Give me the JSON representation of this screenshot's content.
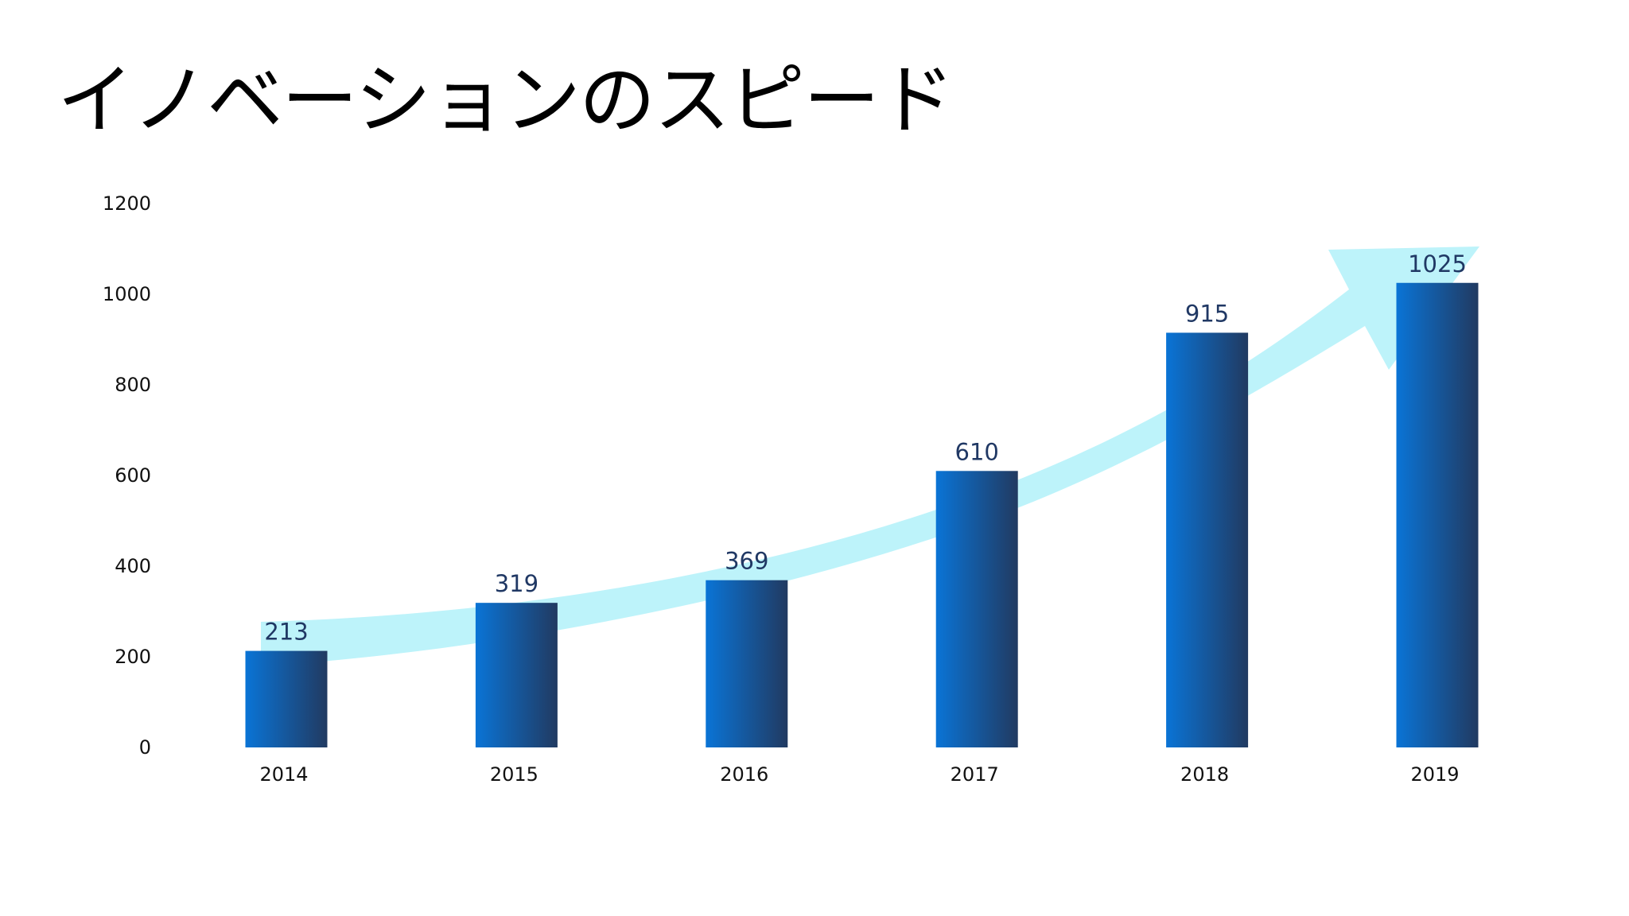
{
  "slide": {
    "title": "イノベーションのスピード"
  },
  "colors": {
    "bar_light": "#0a74d6",
    "bar_dark": "#213a61",
    "arrow": "#bdf3fa",
    "data_label": "#203864"
  },
  "chart_data": {
    "type": "bar",
    "categories": [
      "2014",
      "2015",
      "2016",
      "2017",
      "2018",
      "2019"
    ],
    "values": [
      213,
      319,
      369,
      610,
      915,
      1025
    ],
    "data_labels": [
      "213",
      "319",
      "369",
      "610",
      "915",
      "1025"
    ],
    "y_ticks": [
      "0",
      "200",
      "400",
      "600",
      "800",
      "1000",
      "1200"
    ],
    "ylim": [
      0,
      1200
    ],
    "title": "",
    "xlabel": "",
    "ylabel": "",
    "grid": false,
    "legend": "none",
    "decoration": "curved-upward-arrow"
  }
}
